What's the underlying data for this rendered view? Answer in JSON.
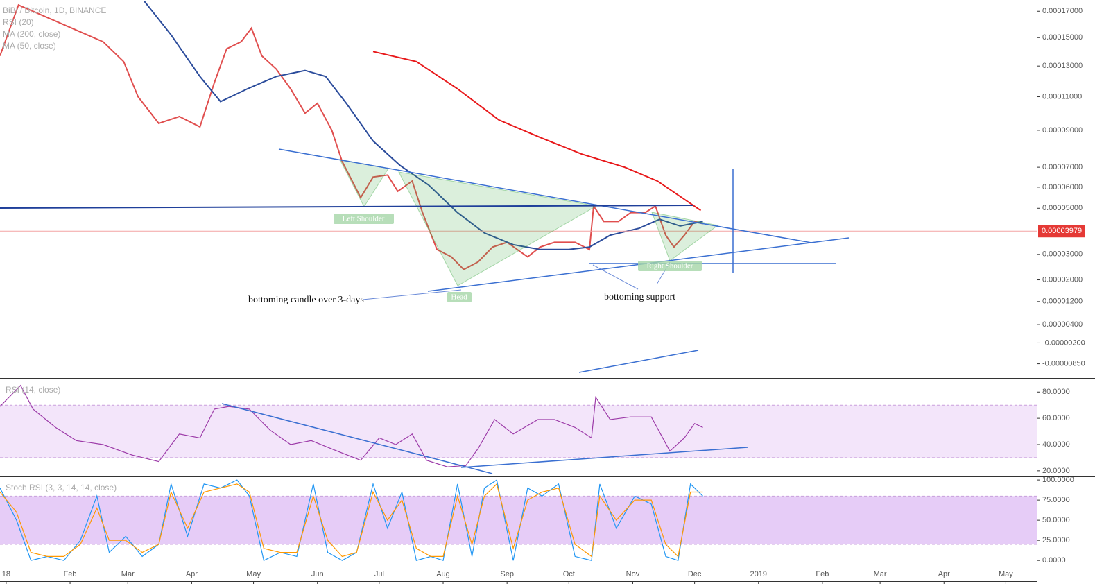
{
  "chart_data": [
    {
      "type": "line",
      "title": "BiBi / Bitcoin, 1D, BINANCE",
      "indicator": "RSI (20)",
      "log_scale": true,
      "xlim": [
        -3,
        500
      ],
      "ylim": [
        -1.27e-05,
        0.000179
      ],
      "yticks": [
        {
          "value": 0.00017,
          "label": "0.00017000"
        },
        {
          "value": 0.00015,
          "label": "0.00015000"
        },
        {
          "value": 0.00013,
          "label": "0.00013000"
        },
        {
          "value": 0.00011,
          "label": "0.00011000"
        },
        {
          "value": 9e-05,
          "label": "0.00009000"
        },
        {
          "value": 7e-05,
          "label": "0.00007000"
        },
        {
          "value": 6e-05,
          "label": "0.00006000"
        },
        {
          "value": 5e-05,
          "label": "0.00005000"
        },
        {
          "value": 3e-05,
          "label": "0.00003000"
        },
        {
          "value": 2e-05,
          "label": "0.00002000"
        },
        {
          "value": 1.2e-05,
          "label": "0.00001200"
        },
        {
          "value": 4e-06,
          "label": "0.00000400"
        },
        {
          "value": -2e-06,
          "label": "-0.00000200"
        },
        {
          "value": -8.5e-06,
          "label": "-0.00000850"
        }
      ],
      "last_price": 3.979e-05,
      "series": [
        {
          "color": "#e04e4e",
          "x": [
            -3,
            6,
            47,
            57,
            64,
            74,
            84,
            94,
            101,
            107,
            114,
            119,
            124,
            131,
            138,
            145,
            151,
            158,
            163,
            172,
            178,
            185,
            190,
            197,
            202,
            209,
            216,
            222,
            229,
            236,
            243,
            253,
            259,
            266,
            276,
            283,
            285,
            290,
            297,
            303,
            310,
            315,
            320,
            324,
            329,
            334,
            338
          ],
          "values": [
            0.000137,
            0.000175,
            0.000147,
            0.000133,
            0.00011,
            9.4e-05,
            9.8e-05,
            9.2e-05,
            0.000119,
            0.000142,
            0.000147,
            0.000157,
            0.000137,
            0.000128,
            0.000115,
            0.0001,
            0.000106,
            9e-05,
            7.3e-05,
            5.5e-05,
            6.5e-05,
            6.6e-05,
            5.8e-05,
            6.3e-05,
            4.8e-05,
            3.2e-05,
            2.9e-05,
            2.4e-05,
            2.7e-05,
            3.3e-05,
            3.5e-05,
            2.9e-05,
            3.3e-05,
            3.5e-05,
            3.5e-05,
            3.2e-05,
            5.1e-05,
            4.4e-05,
            4.4e-05,
            4.8e-05,
            4.8e-05,
            5.1e-05,
            3.8e-05,
            3.3e-05,
            3.8e-05,
            4.4e-05,
            4.3e-05
          ]
        },
        {
          "name": "MA (200, close)",
          "color": "#e8191b",
          "x": [
            178,
            199,
            219,
            239,
            259,
            279,
            300,
            316,
            337
          ],
          "values": [
            0.00014,
            0.000133,
            0.000115,
            9.6e-05,
            8.6e-05,
            7.7e-05,
            7e-05,
            6.3e-05,
            4.9e-05
          ]
        },
        {
          "name": "MA (50, close)",
          "color": "#2a4b9b",
          "x": [
            67,
            80,
            94,
            104,
            117,
            131,
            145,
            155,
            165,
            178,
            191,
            205,
            219,
            232,
            246,
            259,
            273,
            283,
            293,
            307,
            317,
            327,
            338
          ],
          "values": [
            0.000178,
            0.000152,
            0.000123,
            0.000107,
            0.000115,
            0.000123,
            0.000127,
            0.000123,
            0.000106,
            8.4e-05,
            7.1e-05,
            6.1e-05,
            4.8e-05,
            3.9e-05,
            3.4e-05,
            3.2e-05,
            3.2e-05,
            3.3e-05,
            3.8e-05,
            4.1e-05,
            4.5e-05,
            4.2e-05,
            4.4e-05
          ]
        }
      ],
      "annotations": [
        "Left Shoulder",
        "Head",
        "Right Shoulder",
        "bottoming candle over 3-days",
        "bottoming support"
      ]
    },
    {
      "type": "line",
      "title": "RSI (14, close)",
      "xlim": [
        -3,
        500
      ],
      "ylim": [
        15.7,
        90.7
      ],
      "band": [
        30,
        70
      ],
      "band_color": "#f3e5fa",
      "yticks": [
        {
          "value": 80,
          "label": "80.0000"
        },
        {
          "value": 60,
          "label": "60.0000"
        },
        {
          "value": 40,
          "label": "40.0000"
        },
        {
          "value": 20,
          "label": "20.0000"
        }
      ],
      "series": [
        {
          "color": "#9c3aa8",
          "x": [
            -3,
            7,
            13,
            24,
            34,
            47,
            61,
            74,
            84,
            94,
            101,
            108,
            118,
            128,
            138,
            148,
            159,
            172,
            181,
            189,
            197,
            204,
            214,
            223,
            229,
            237,
            246,
            258,
            266,
            276,
            284,
            286,
            293,
            303,
            313,
            322,
            329,
            334,
            338
          ],
          "values": [
            69,
            85,
            67,
            53,
            43,
            40,
            32,
            27,
            48,
            45,
            67,
            69,
            67,
            51,
            40,
            43,
            36,
            28,
            45,
            40,
            48,
            28,
            23,
            24,
            37,
            59,
            48,
            59,
            59,
            53,
            45,
            76,
            59,
            61,
            61,
            35,
            45,
            56,
            53
          ]
        }
      ]
    },
    {
      "type": "line",
      "title": "Stoch RSI (3, 3, 14, 14, close)",
      "xlim": [
        -3,
        500
      ],
      "ylim": [
        -25.7,
        104.4
      ],
      "band": [
        20,
        80
      ],
      "band_color": "#e6ccf7",
      "yticks": [
        {
          "value": 100,
          "label": "100.0000"
        },
        {
          "value": 75,
          "label": "75.0000"
        },
        {
          "value": 50,
          "label": "50.0000"
        },
        {
          "value": 25,
          "label": "25.0000"
        },
        {
          "value": 0,
          "label": "0.0000"
        }
      ],
      "xticks": [
        {
          "value": 0,
          "label": "18"
        },
        {
          "value": 31,
          "label": "Feb"
        },
        {
          "value": 59,
          "label": "Mar"
        },
        {
          "value": 90,
          "label": "Apr"
        },
        {
          "value": 120,
          "label": "May"
        },
        {
          "value": 151,
          "label": "Jun"
        },
        {
          "value": 181,
          "label": "Jul"
        },
        {
          "value": 212,
          "label": "Aug"
        },
        {
          "value": 243,
          "label": "Sep"
        },
        {
          "value": 273,
          "label": "Oct"
        },
        {
          "value": 304,
          "label": "Nov"
        },
        {
          "value": 334,
          "label": "Dec"
        },
        {
          "value": 365,
          "label": "2019"
        },
        {
          "value": 396,
          "label": "Feb"
        },
        {
          "value": 424,
          "label": "Mar"
        },
        {
          "value": 455,
          "label": "Apr"
        },
        {
          "value": 485,
          "label": "May"
        }
      ],
      "series": [
        {
          "color": "#2196f3",
          "x": [
            -3,
            5,
            12,
            20,
            28,
            36,
            44,
            50,
            58,
            66,
            74,
            80,
            88,
            96,
            104,
            112,
            118,
            125,
            133,
            141,
            149,
            156,
            163,
            170,
            178,
            185,
            192,
            199,
            206,
            212,
            219,
            226,
            232,
            238,
            246,
            253,
            260,
            268,
            276,
            284,
            288,
            296,
            305,
            313,
            320,
            326,
            332,
            338
          ],
          "values": [
            90,
            50,
            0,
            5,
            0,
            25,
            80,
            10,
            30,
            5,
            20,
            95,
            30,
            95,
            90,
            100,
            80,
            0,
            10,
            5,
            95,
            10,
            0,
            10,
            95,
            40,
            85,
            0,
            5,
            0,
            95,
            5,
            90,
            100,
            0,
            90,
            80,
            95,
            5,
            0,
            95,
            40,
            80,
            70,
            5,
            0,
            95,
            80
          ]
        },
        {
          "color": "#ff9800",
          "x": [
            -3,
            5,
            12,
            20,
            28,
            36,
            44,
            50,
            58,
            66,
            74,
            80,
            88,
            96,
            104,
            112,
            118,
            125,
            133,
            141,
            149,
            156,
            163,
            170,
            178,
            185,
            192,
            199,
            206,
            212,
            219,
            226,
            232,
            238,
            246,
            253,
            260,
            268,
            276,
            284,
            288,
            296,
            305,
            313,
            320,
            326,
            332,
            338
          ],
          "values": [
            85,
            60,
            10,
            5,
            5,
            20,
            65,
            25,
            25,
            10,
            20,
            85,
            40,
            85,
            90,
            95,
            85,
            15,
            10,
            10,
            80,
            25,
            5,
            10,
            85,
            50,
            75,
            15,
            5,
            5,
            80,
            20,
            80,
            95,
            15,
            75,
            85,
            90,
            20,
            5,
            80,
            50,
            75,
            75,
            20,
            5,
            85,
            85
          ]
        }
      ]
    }
  ]
}
